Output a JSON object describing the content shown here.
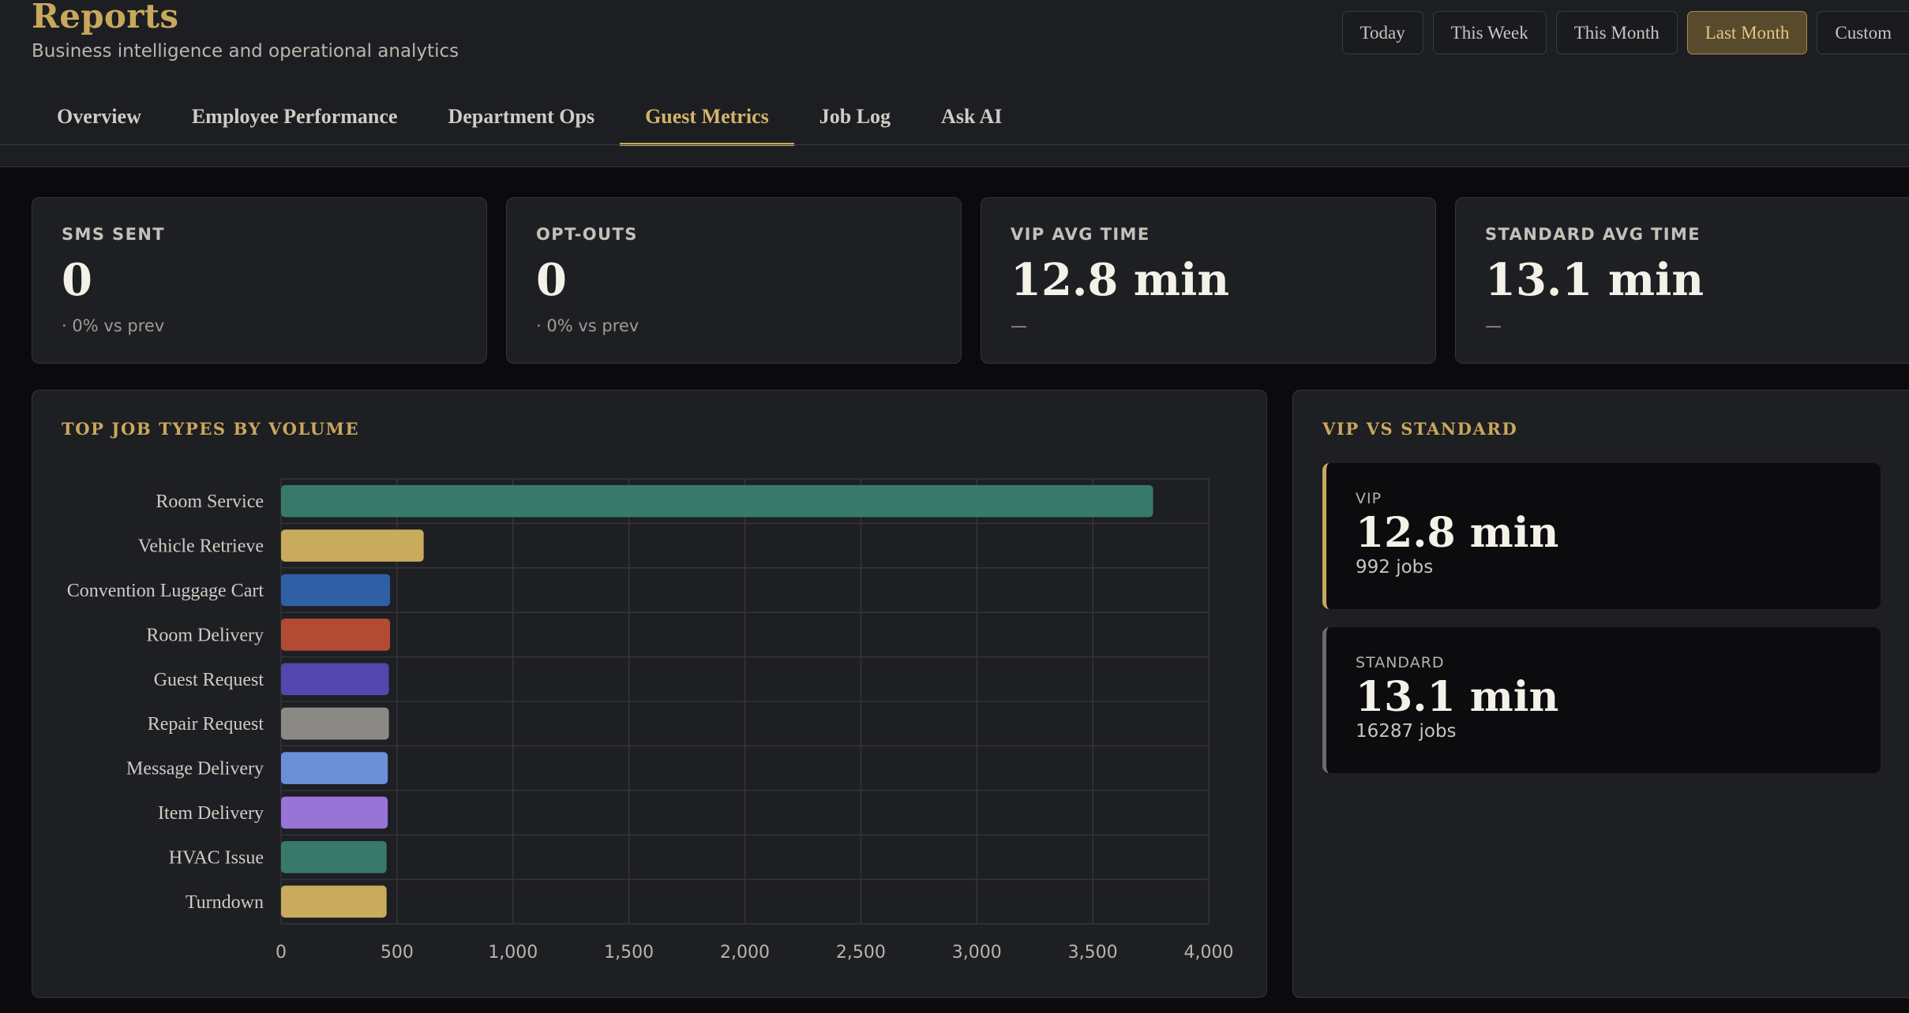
{
  "header": {
    "title": "Reports",
    "subtitle": "Business intelligence and operational analytics"
  },
  "date_range": {
    "options": [
      "Today",
      "This Week",
      "This Month",
      "Last Month",
      "Custom"
    ],
    "selected": "Last Month"
  },
  "tabs": {
    "items": [
      "Overview",
      "Employee Performance",
      "Department Ops",
      "Guest Metrics",
      "Job Log",
      "Ask AI"
    ],
    "active": "Guest Metrics"
  },
  "kpis": [
    {
      "label": "SMS SENT",
      "value": "0",
      "sub": "· 0% vs prev"
    },
    {
      "label": "OPT-OUTS",
      "value": "0",
      "sub": "· 0% vs prev"
    },
    {
      "label": "VIP AVG TIME",
      "value": "12.8 min",
      "sub": "—"
    },
    {
      "label": "STANDARD AVG TIME",
      "value": "13.1 min",
      "sub": "—"
    }
  ],
  "job_types_card": {
    "title": "TOP JOB TYPES BY VOLUME"
  },
  "chart_data": {
    "type": "bar",
    "orientation": "horizontal",
    "title": "TOP JOB TYPES BY VOLUME",
    "categories": [
      "Room Service",
      "Vehicle Retrieve",
      "Convention Luggage Cart",
      "Room Delivery",
      "Guest Request",
      "Repair Request",
      "Message Delivery",
      "Item Delivery",
      "HVAC Issue",
      "Turndown"
    ],
    "values": [
      3760,
      615,
      470,
      470,
      465,
      465,
      460,
      460,
      455,
      455
    ],
    "colors": [
      "#377a6c",
      "#c9ab5e",
      "#2f5fa5",
      "#b34b34",
      "#5346ad",
      "#8a8985",
      "#6b8fd8",
      "#9774d6",
      "#377a6c",
      "#c9ab5e"
    ],
    "xlim": [
      0,
      4000
    ],
    "xticks": [
      "0",
      "500",
      "1,000",
      "1,500",
      "2,000",
      "2,500",
      "3,000",
      "3,500",
      "4,000"
    ],
    "grid": true
  },
  "vs_card": {
    "title": "VIP VS STANDARD",
    "vip": {
      "label": "VIP",
      "value": "12.8 min",
      "jobs": "992 jobs"
    },
    "standard": {
      "label": "STANDARD",
      "value": "13.1 min",
      "jobs": "16287 jobs"
    }
  },
  "colors": {
    "accent_gold": "#c9a85c",
    "background": "#0b0b0e",
    "card": "#1e1f23"
  }
}
